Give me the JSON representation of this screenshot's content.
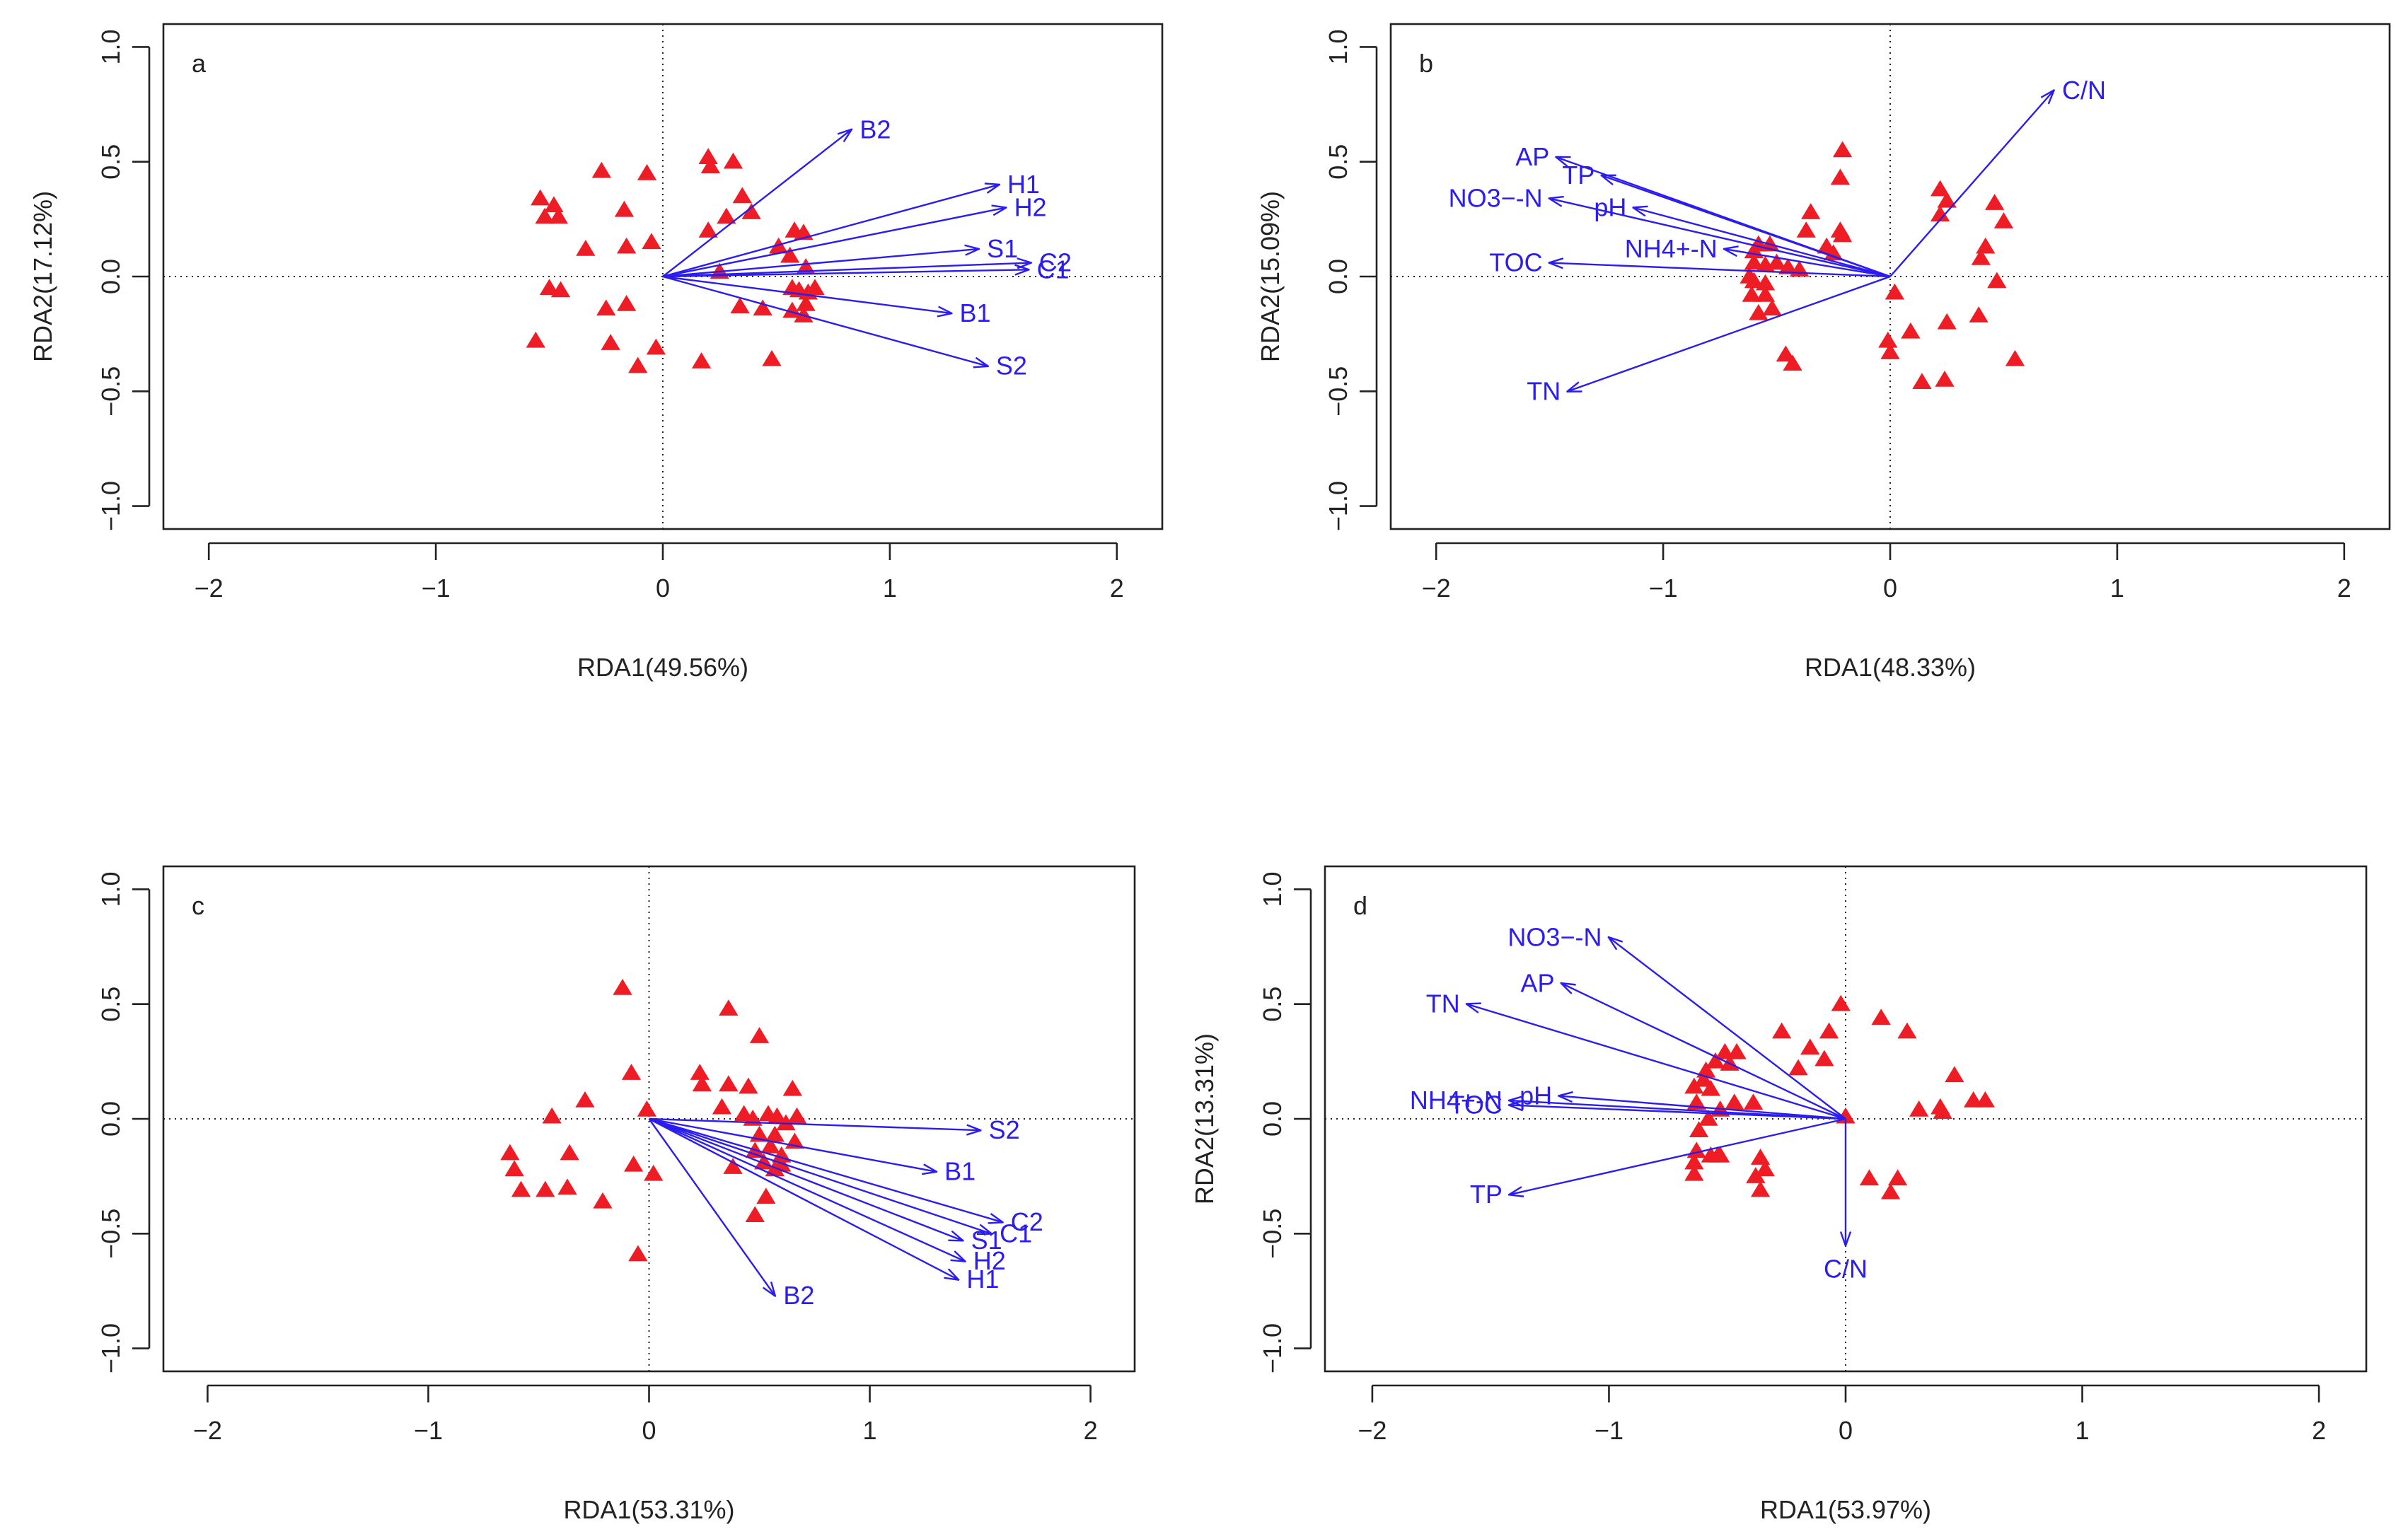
{
  "chart_data": [
    {
      "type": "scatter",
      "panel_label": "a",
      "xlabel": "RDA1(49.56%)",
      "ylabel": "RDA2(17.12%)",
      "xlim": [
        -2.2,
        2.2
      ],
      "ylim": [
        -1.1,
        1.1
      ],
      "xticks": [
        -2,
        -1,
        0,
        1,
        2
      ],
      "yticks": [
        -1.0,
        -0.5,
        0.0,
        0.5,
        1.0
      ],
      "xtick_labels": [
        "−2",
        "−1",
        "0",
        "1",
        "2"
      ],
      "ytick_labels": [
        "−1.0",
        "−0.5",
        "0.0",
        "0.5",
        "1.0"
      ],
      "arrows": [
        {
          "label": "B2",
          "x": 0.83,
          "y": 0.64
        },
        {
          "label": "H1",
          "x": 1.48,
          "y": 0.4
        },
        {
          "label": "H2",
          "x": 1.51,
          "y": 0.3
        },
        {
          "label": "S1",
          "x": 1.39,
          "y": 0.12
        },
        {
          "label": "C2",
          "x": 1.62,
          "y": 0.06
        },
        {
          "label": "C1",
          "x": 1.61,
          "y": 0.03
        },
        {
          "label": "B1",
          "x": 1.27,
          "y": -0.16
        },
        {
          "label": "S2",
          "x": 1.43,
          "y": -0.39
        }
      ],
      "points": [
        [
          -0.54,
          0.34
        ],
        [
          -0.48,
          0.31
        ],
        [
          -0.52,
          0.26
        ],
        [
          -0.46,
          0.26
        ],
        [
          -0.27,
          0.46
        ],
        [
          -0.07,
          0.45
        ],
        [
          -0.17,
          0.29
        ],
        [
          -0.34,
          0.12
        ],
        [
          -0.16,
          0.13
        ],
        [
          -0.05,
          0.15
        ],
        [
          -0.5,
          -0.05
        ],
        [
          -0.45,
          -0.06
        ],
        [
          -0.25,
          -0.14
        ],
        [
          -0.16,
          -0.12
        ],
        [
          -0.56,
          -0.28
        ],
        [
          -0.23,
          -0.29
        ],
        [
          -0.11,
          -0.39
        ],
        [
          -0.03,
          -0.31
        ],
        [
          0.2,
          0.52
        ],
        [
          0.21,
          0.48
        ],
        [
          0.31,
          0.5
        ],
        [
          0.35,
          0.35
        ],
        [
          0.28,
          0.26
        ],
        [
          0.39,
          0.28
        ],
        [
          0.2,
          0.2
        ],
        [
          0.51,
          0.13
        ],
        [
          0.56,
          0.09
        ],
        [
          0.58,
          0.2
        ],
        [
          0.62,
          0.19
        ],
        [
          0.63,
          0.04
        ],
        [
          0.25,
          0.02
        ],
        [
          0.57,
          -0.05
        ],
        [
          0.6,
          -0.06
        ],
        [
          0.64,
          -0.07
        ],
        [
          0.67,
          -0.05
        ],
        [
          0.34,
          -0.13
        ],
        [
          0.44,
          -0.14
        ],
        [
          0.57,
          -0.15
        ],
        [
          0.62,
          -0.17
        ],
        [
          0.63,
          -0.12
        ],
        [
          0.17,
          -0.37
        ],
        [
          0.48,
          -0.36
        ]
      ]
    },
    {
      "type": "scatter",
      "panel_label": "b",
      "xlabel": "RDA1(48.33%)",
      "ylabel": "RDA2(15.09%)",
      "xlim": [
        -2.2,
        2.2
      ],
      "ylim": [
        -1.1,
        1.1
      ],
      "xticks": [
        -2,
        -1,
        0,
        1,
        2
      ],
      "yticks": [
        -1.0,
        -0.5,
        0.0,
        0.5,
        1.0
      ],
      "xtick_labels": [
        "−2",
        "−1",
        "0",
        "1",
        "2"
      ],
      "ytick_labels": [
        "−1.0",
        "−0.5",
        "0.0",
        "0.5",
        "1.0"
      ],
      "arrows": [
        {
          "label": "C/N",
          "x": 0.72,
          "y": 0.81
        },
        {
          "label": "AP",
          "x": -1.47,
          "y": 0.52
        },
        {
          "label": "TP",
          "x": -1.27,
          "y": 0.44
        },
        {
          "label": "NO3−-N",
          "x": -1.5,
          "y": 0.34
        },
        {
          "label": "pH",
          "x": -1.13,
          "y": 0.3
        },
        {
          "label": "NH4+-N",
          "x": -0.73,
          "y": 0.12
        },
        {
          "label": "TOC",
          "x": -1.5,
          "y": 0.06
        },
        {
          "label": "TN",
          "x": -1.42,
          "y": -0.5
        }
      ],
      "points": [
        [
          -0.21,
          0.55
        ],
        [
          -0.22,
          0.43
        ],
        [
          -0.35,
          0.28
        ],
        [
          -0.37,
          0.2
        ],
        [
          -0.22,
          0.2
        ],
        [
          -0.21,
          0.18
        ],
        [
          -0.28,
          0.13
        ],
        [
          -0.25,
          0.1
        ],
        [
          -0.58,
          0.14
        ],
        [
          -0.6,
          0.11
        ],
        [
          -0.53,
          0.14
        ],
        [
          -0.6,
          0.06
        ],
        [
          -0.55,
          0.05
        ],
        [
          -0.5,
          0.06
        ],
        [
          -0.62,
          0.0
        ],
        [
          -0.6,
          -0.02
        ],
        [
          -0.55,
          -0.03
        ],
        [
          -0.45,
          0.04
        ],
        [
          -0.4,
          0.03
        ],
        [
          -0.61,
          -0.08
        ],
        [
          -0.55,
          -0.08
        ],
        [
          -0.58,
          -0.16
        ],
        [
          -0.52,
          -0.14
        ],
        [
          -0.46,
          -0.34
        ],
        [
          -0.43,
          -0.38
        ],
        [
          0.02,
          -0.07
        ],
        [
          0.22,
          0.38
        ],
        [
          0.22,
          0.27
        ],
        [
          0.25,
          0.33
        ],
        [
          0.46,
          0.32
        ],
        [
          0.5,
          0.24
        ],
        [
          0.42,
          0.13
        ],
        [
          0.4,
          0.08
        ],
        [
          0.47,
          -0.02
        ],
        [
          0.39,
          -0.17
        ],
        [
          0.25,
          -0.2
        ],
        [
          0.55,
          -0.36
        ],
        [
          0.09,
          -0.24
        ],
        [
          0.0,
          -0.33
        ],
        [
          -0.01,
          -0.28
        ],
        [
          0.14,
          -0.46
        ],
        [
          0.24,
          -0.45
        ]
      ]
    },
    {
      "type": "scatter",
      "panel_label": "c",
      "xlabel": "RDA1(53.31%)",
      "ylabel": "",
      "xlim": [
        -2.2,
        2.2
      ],
      "ylim": [
        -1.1,
        1.1
      ],
      "xticks": [
        -2,
        -1,
        0,
        1,
        2
      ],
      "yticks": [
        -1.0,
        -0.5,
        0.0,
        0.5,
        1.0
      ],
      "xtick_labels": [
        "−2",
        "−1",
        "0",
        "1",
        "2"
      ],
      "ytick_labels": [
        "−1.0",
        "−0.5",
        "0.0",
        "0.5",
        "1.0"
      ],
      "arrows": [
        {
          "label": "S2",
          "x": 1.5,
          "y": -0.05
        },
        {
          "label": "B1",
          "x": 1.3,
          "y": -0.23
        },
        {
          "label": "C2",
          "x": 1.6,
          "y": -0.45
        },
        {
          "label": "S1",
          "x": 1.42,
          "y": -0.53
        },
        {
          "label": "C1",
          "x": 1.55,
          "y": -0.5
        },
        {
          "label": "H2",
          "x": 1.43,
          "y": -0.62
        },
        {
          "label": "H1",
          "x": 1.4,
          "y": -0.7
        },
        {
          "label": "B2",
          "x": 0.57,
          "y": -0.77
        }
      ],
      "points": [
        [
          -0.12,
          0.57
        ],
        [
          -0.08,
          0.2
        ],
        [
          0.36,
          0.48
        ],
        [
          0.5,
          0.36
        ],
        [
          -0.29,
          0.08
        ],
        [
          -0.44,
          0.01
        ],
        [
          -0.01,
          0.04
        ],
        [
          -0.36,
          -0.15
        ],
        [
          -0.63,
          -0.15
        ],
        [
          -0.61,
          -0.22
        ],
        [
          -0.58,
          -0.31
        ],
        [
          -0.47,
          -0.31
        ],
        [
          -0.37,
          -0.3
        ],
        [
          -0.21,
          -0.36
        ],
        [
          -0.07,
          -0.2
        ],
        [
          0.02,
          -0.24
        ],
        [
          -0.05,
          -0.59
        ],
        [
          0.23,
          0.2
        ],
        [
          0.24,
          0.15
        ],
        [
          0.36,
          0.15
        ],
        [
          0.45,
          0.14
        ],
        [
          0.65,
          0.13
        ],
        [
          0.33,
          0.05
        ],
        [
          0.43,
          0.02
        ],
        [
          0.47,
          0.0
        ],
        [
          0.54,
          0.02
        ],
        [
          0.58,
          0.01
        ],
        [
          0.62,
          -0.02
        ],
        [
          0.67,
          0.01
        ],
        [
          0.5,
          -0.07
        ],
        [
          0.57,
          -0.07
        ],
        [
          0.66,
          -0.1
        ],
        [
          0.48,
          -0.14
        ],
        [
          0.55,
          -0.12
        ],
        [
          0.6,
          -0.16
        ],
        [
          0.38,
          -0.21
        ],
        [
          0.52,
          -0.19
        ],
        [
          0.57,
          -0.22
        ],
        [
          0.6,
          -0.2
        ],
        [
          0.53,
          -0.34
        ],
        [
          0.48,
          -0.42
        ]
      ]
    },
    {
      "type": "scatter",
      "panel_label": "d",
      "xlabel": "RDA1(53.97%)",
      "ylabel": "RDA2(13.31%)",
      "xlim": [
        -2.2,
        2.2
      ],
      "ylim": [
        -1.1,
        1.1
      ],
      "xticks": [
        -2,
        -1,
        0,
        1,
        2
      ],
      "yticks": [
        -1.0,
        -0.5,
        0.0,
        0.5,
        1.0
      ],
      "xtick_labels": [
        "−2",
        "−1",
        "0",
        "1",
        "2"
      ],
      "ytick_labels": [
        "−1.0",
        "−0.5",
        "0.0",
        "0.5",
        "1.0"
      ],
      "arrows": [
        {
          "label": "NO3−-N",
          "x": -1.0,
          "y": 0.79
        },
        {
          "label": "AP",
          "x": -1.2,
          "y": 0.59
        },
        {
          "label": "TN",
          "x": -1.6,
          "y": 0.5
        },
        {
          "label": "NH4+-N",
          "x": -1.42,
          "y": 0.08
        },
        {
          "label": "pH",
          "x": -1.21,
          "y": 0.1
        },
        {
          "label": "TOC",
          "x": -1.42,
          "y": 0.06
        },
        {
          "label": "TP",
          "x": -1.42,
          "y": -0.33
        },
        {
          "label": "C/N",
          "x": 0.0,
          "y": -0.55
        }
      ],
      "points": [
        [
          -0.02,
          0.5
        ],
        [
          -0.27,
          0.38
        ],
        [
          -0.07,
          0.38
        ],
        [
          -0.15,
          0.31
        ],
        [
          -0.09,
          0.26
        ],
        [
          -0.2,
          0.22
        ],
        [
          -0.46,
          0.29
        ],
        [
          -0.51,
          0.29
        ],
        [
          -0.55,
          0.25
        ],
        [
          -0.59,
          0.21
        ],
        [
          -0.49,
          0.24
        ],
        [
          -0.6,
          0.17
        ],
        [
          -0.64,
          0.14
        ],
        [
          -0.57,
          0.13
        ],
        [
          -0.63,
          0.07
        ],
        [
          -0.53,
          0.04
        ],
        [
          -0.47,
          0.07
        ],
        [
          -0.39,
          0.07
        ],
        [
          -0.58,
          0.0
        ],
        [
          -0.62,
          -0.05
        ],
        [
          -0.63,
          -0.14
        ],
        [
          -0.57,
          -0.16
        ],
        [
          -0.54,
          -0.16
        ],
        [
          -0.64,
          -0.19
        ],
        [
          -0.64,
          -0.24
        ],
        [
          -0.53,
          -0.16
        ],
        [
          -0.36,
          -0.17
        ],
        [
          -0.34,
          -0.22
        ],
        [
          -0.38,
          -0.25
        ],
        [
          -0.36,
          -0.31
        ],
        [
          0.0,
          0.01
        ],
        [
          0.15,
          0.44
        ],
        [
          0.26,
          0.38
        ],
        [
          0.46,
          0.19
        ],
        [
          0.4,
          0.05
        ],
        [
          0.41,
          0.03
        ],
        [
          0.31,
          0.04
        ],
        [
          0.54,
          0.08
        ],
        [
          0.59,
          0.08
        ],
        [
          0.1,
          -0.26
        ],
        [
          0.22,
          -0.26
        ],
        [
          0.19,
          -0.32
        ]
      ]
    }
  ]
}
